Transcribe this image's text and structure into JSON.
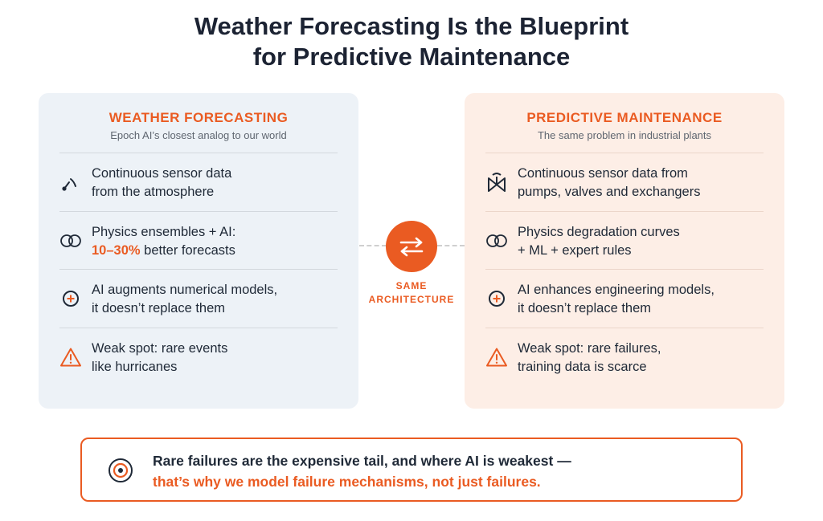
{
  "title": {
    "line1": "Weather Forecasting Is the Blueprint",
    "line2": "for Predictive Maintenance"
  },
  "left_panel": {
    "title": "WEATHER FORECASTING",
    "subtitle": "Epoch AI’s closest analog to our world",
    "items": [
      {
        "icon": "signal-gauge-icon",
        "line1": "Continuous sensor data",
        "line2": "from the atmosphere"
      },
      {
        "icon": "overlapping-circles-icon",
        "line1": "Physics ensembles + AI:",
        "line2_highlight": "10–30%",
        "line2_rest": " better forecasts"
      },
      {
        "icon": "plus-circle-icon",
        "line1": "AI augments numerical models,",
        "line2": "it doesn’t replace them"
      },
      {
        "icon": "warning-icon",
        "line1": "Weak spot: rare events",
        "line2": "like hurricanes"
      }
    ]
  },
  "right_panel": {
    "title": "PREDICTIVE MAINTENANCE",
    "subtitle": "The same problem in industrial plants",
    "items": [
      {
        "icon": "valve-icon",
        "line1": "Continuous sensor data from",
        "line2": "pumps, valves and exchangers"
      },
      {
        "icon": "overlapping-circles-icon",
        "line1": "Physics degradation curves",
        "line2": "+ ML + expert rules"
      },
      {
        "icon": "plus-circle-icon",
        "line1": "AI enhances engineering models,",
        "line2": "it doesn’t replace them"
      },
      {
        "icon": "warning-icon",
        "line1": "Weak spot: rare failures,",
        "line2": "training data is scarce"
      }
    ]
  },
  "connector": {
    "icon": "swap-arrows-icon",
    "label_line1": "SAME",
    "label_line2": "ARCHITECTURE"
  },
  "callout": {
    "icon": "target-icon",
    "line1": "Rare failures are the expensive tail, and where AI is weakest —",
    "line2": "that’s why we model failure mechanisms, not just failures."
  },
  "colors": {
    "accent": "#ea5b22",
    "left_panel_bg": "#edf2f7",
    "right_panel_bg": "#fdeee6",
    "title": "#1c2333"
  }
}
